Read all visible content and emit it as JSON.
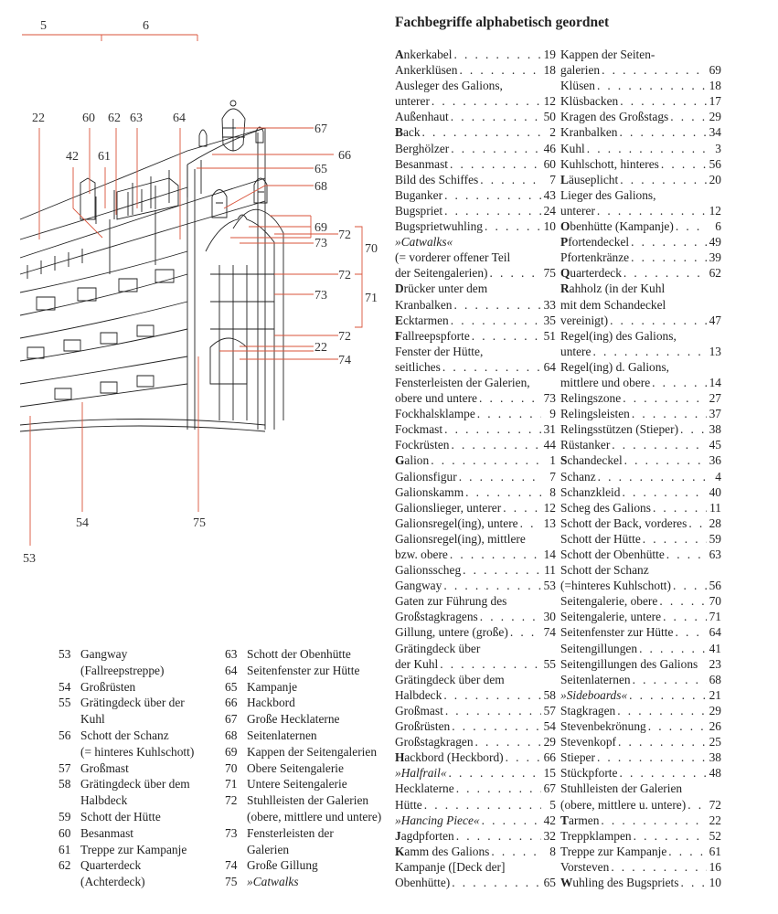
{
  "colors": {
    "leader_lines": "#d9533a",
    "drawing": "#222222",
    "text": "#222222"
  },
  "drawing": {
    "labels": {
      "top_5": "5",
      "top_6": "6",
      "l22a": "22",
      "l60": "60",
      "l62": "62",
      "l63": "63",
      "l64": "64",
      "l42": "42",
      "l61": "61",
      "l67": "67",
      "l66": "66",
      "l65": "65",
      "l68": "68",
      "l69": "69",
      "l72a": "72",
      "l73a": "73",
      "l70": "70",
      "l72b": "72",
      "l73b": "73",
      "l71": "71",
      "l72c": "72",
      "l22b": "22",
      "l74": "74",
      "l54": "54",
      "l75": "75",
      "l53": "53"
    }
  },
  "glossary": {
    "title": "Fachbegriffe alphabetisch geordnet",
    "col1": [
      {
        "t": "Ankerkabel",
        "n": "19",
        "b": 1
      },
      {
        "t": "Ankerklüsen",
        "n": "18"
      },
      {
        "t": "Ausleger des Galions,"
      },
      {
        "t": "unterer",
        "n": "12"
      },
      {
        "t": "Außenhaut",
        "n": "50"
      },
      {
        "t": "Back",
        "n": "2",
        "b": 1
      },
      {
        "t": "Berghölzer",
        "n": "46"
      },
      {
        "t": "Besanmast",
        "n": "60"
      },
      {
        "t": "Bild des Schiffes",
        "n": "7"
      },
      {
        "t": "Buganker",
        "n": "43"
      },
      {
        "t": "Bugspriet",
        "n": "24"
      },
      {
        "t": "Bugsprietwuhling",
        "n": "10"
      },
      {
        "t": "»Catwalks«",
        "i": 1
      },
      {
        "t": "(= vorderer offener Teil"
      },
      {
        "t": "der Seitengalerien)",
        "n": "75"
      },
      {
        "t": "Drücker unter dem",
        "b": 1
      },
      {
        "t": "Kranbalken",
        "n": "33"
      },
      {
        "t": "Ecktarmen",
        "n": "35",
        "b": 1
      },
      {
        "t": "Fallreepspforte",
        "n": "51",
        "b": 1
      },
      {
        "t": "Fenster der Hütte,"
      },
      {
        "t": "seitliches",
        "n": "64"
      },
      {
        "t": "Fensterleisten der Galerien,"
      },
      {
        "t": "obere und untere",
        "n": "73"
      },
      {
        "t": "Fockhalsklampe",
        "n": "9"
      },
      {
        "t": "Fockmast",
        "n": "31"
      },
      {
        "t": "Fockrüsten",
        "n": "44"
      },
      {
        "t": "Galion",
        "n": "1",
        "b": 1
      },
      {
        "t": "Galionsfigur",
        "n": "7"
      },
      {
        "t": "Galionskamm",
        "n": "8"
      },
      {
        "t": "Galionslieger, unterer",
        "n": "12"
      },
      {
        "t": "Galionsregel(ing), untere",
        "n": "13"
      },
      {
        "t": "Galionsregel(ing), mittlere"
      },
      {
        "t": "bzw. obere",
        "n": "14"
      },
      {
        "t": "Galionsscheg",
        "n": "11"
      },
      {
        "t": "Gangway",
        "n": "53"
      },
      {
        "t": "Gaten zur Führung des"
      },
      {
        "t": "Großstagkragens",
        "n": "30"
      },
      {
        "t": "Gillung, untere (große)",
        "n": "74"
      },
      {
        "t": "Grätingdeck über"
      },
      {
        "t": "der Kuhl",
        "n": "55"
      },
      {
        "t": "Grätingdeck über dem"
      },
      {
        "t": "Halbdeck",
        "n": "58"
      },
      {
        "t": "Großmast",
        "n": "57"
      },
      {
        "t": "Großrüsten",
        "n": "54"
      },
      {
        "t": "Großstagkragen",
        "n": "29"
      },
      {
        "t": "Hackbord (Heckbord)",
        "n": "66",
        "b": 1
      },
      {
        "t": "»Halfrail«",
        "n": "15",
        "i": 1
      },
      {
        "t": "Hecklaterne",
        "n": "67"
      },
      {
        "t": "Hütte",
        "n": "5"
      },
      {
        "t": "»Hancing Piece«",
        "n": "42",
        "i": 1
      },
      {
        "t": "Jagdpforten",
        "n": "32",
        "b": 1
      },
      {
        "t": "Kamm des Galions",
        "n": "8",
        "b": 1
      },
      {
        "t": "Kampanje ([Deck der]"
      },
      {
        "t": "Obenhütte)",
        "n": "65"
      }
    ],
    "col2": [
      {
        "t": "Kappen der Seiten-"
      },
      {
        "t": "galerien",
        "n": "69"
      },
      {
        "t": "Klüsen",
        "n": "18"
      },
      {
        "t": "Klüsbacken",
        "n": "17"
      },
      {
        "t": "Kragen des Großstags",
        "n": "29"
      },
      {
        "t": "Kranbalken",
        "n": "34"
      },
      {
        "t": "Kuhl",
        "n": "3"
      },
      {
        "t": "Kuhlschott, hinteres",
        "n": "56"
      },
      {
        "t": "Läuseplicht",
        "n": "20",
        "b": 1
      },
      {
        "t": "Lieger des Galions,"
      },
      {
        "t": "unterer",
        "n": "12"
      },
      {
        "t": "Obenhütte (Kampanje)",
        "n": "6",
        "b": 1
      },
      {
        "t": "Pfortendeckel",
        "n": "49",
        "b": 1
      },
      {
        "t": "Pfortenkränze",
        "n": "39"
      },
      {
        "t": "Quarterdeck",
        "n": "62",
        "b": 1
      },
      {
        "t": "Rahholz (in der Kuhl",
        "b": 1
      },
      {
        "t": "mit dem Schandeckel"
      },
      {
        "t": "vereinigt)",
        "n": "47"
      },
      {
        "t": "Regel(ing) des Galions,"
      },
      {
        "t": "untere",
        "n": "13"
      },
      {
        "t": "Regel(ing) d. Galions,"
      },
      {
        "t": "mittlere und obere",
        "n": "14"
      },
      {
        "t": "Relingszone",
        "n": "27"
      },
      {
        "t": "Relingsleisten",
        "n": "37"
      },
      {
        "t": "Relingsstützen (Stieper)",
        "n": "38"
      },
      {
        "t": "Rüstanker",
        "n": "45"
      },
      {
        "t": "Schandeckel",
        "n": "36",
        "b": 1
      },
      {
        "t": "Schanz",
        "n": "4"
      },
      {
        "t": "Schanzkleid",
        "n": "40"
      },
      {
        "t": "Scheg des Galions",
        "n": "11"
      },
      {
        "t": "Schott der Back, vorderes",
        "n": "28"
      },
      {
        "t": "Schott der Hütte",
        "n": "59"
      },
      {
        "t": "Schott der Obenhütte",
        "n": "63"
      },
      {
        "t": "Schott der Schanz"
      },
      {
        "t": "(=hinteres Kuhlschott)",
        "n": "56"
      },
      {
        "t": "Seitengalerie, obere",
        "n": "70"
      },
      {
        "t": "Seitengalerie, untere",
        "n": "71"
      },
      {
        "t": "Seitenfenster zur Hütte",
        "n": "64"
      },
      {
        "t": "Seitengillungen",
        "n": "41"
      },
      {
        "t": "Seitengillungen des Galions",
        "n": "23",
        "nodots": 1
      },
      {
        "t": "Seitenlaternen",
        "n": "68"
      },
      {
        "t": "»Sideboards«",
        "n": "21",
        "i": 1
      },
      {
        "t": "Stagkragen",
        "n": "29"
      },
      {
        "t": "Stevenbekrönung",
        "n": "26"
      },
      {
        "t": "Stevenkopf",
        "n": "25"
      },
      {
        "t": "Stieper",
        "n": "38"
      },
      {
        "t": "Stückpforte",
        "n": "48"
      },
      {
        "t": "Stuhlleisten der Galerien"
      },
      {
        "t": "(obere, mittlere u. untere)",
        "n": "72"
      },
      {
        "t": "Tarmen",
        "n": "22",
        "b": 1
      },
      {
        "t": "Treppklampen",
        "n": "52"
      },
      {
        "t": "Treppe zur Kampanje",
        "n": "61"
      },
      {
        "t": "Vorsteven",
        "n": "16"
      },
      {
        "t": "Wuhling des Bugspriets",
        "n": "10",
        "b": 1
      }
    ]
  },
  "legend": {
    "col1": [
      {
        "n": "53",
        "t": "Gangway"
      },
      {
        "n": "",
        "t": "(Fallreepstreppe)"
      },
      {
        "n": "54",
        "t": "Großrüsten"
      },
      {
        "n": "55",
        "t": "Grätingdeck über der"
      },
      {
        "n": "",
        "t": "Kuhl"
      },
      {
        "n": "56",
        "t": "Schott der Schanz"
      },
      {
        "n": "",
        "t": "(= hinteres Kuhlschott)"
      },
      {
        "n": "57",
        "t": "Großmast"
      },
      {
        "n": "58",
        "t": "Grätingdeck über dem"
      },
      {
        "n": "",
        "t": "Halbdeck"
      },
      {
        "n": "59",
        "t": "Schott der Hütte"
      },
      {
        "n": "60",
        "t": "Besanmast"
      },
      {
        "n": "61",
        "t": "Treppe zur Kampanje"
      },
      {
        "n": "62",
        "t": "Quarterdeck"
      },
      {
        "n": "",
        "t": "(Achterdeck)"
      }
    ],
    "col2": [
      {
        "n": "63",
        "t": "Schott der Obenhütte"
      },
      {
        "n": "64",
        "t": "Seitenfenster zur Hütte"
      },
      {
        "n": "65",
        "t": "Kampanje"
      },
      {
        "n": "66",
        "t": "Hackbord"
      },
      {
        "n": "67",
        "t": "Große Hecklaterne"
      },
      {
        "n": "68",
        "t": "Seitenlaternen"
      },
      {
        "n": "69",
        "t": "Kappen der Seitengalerien"
      },
      {
        "n": "70",
        "t": "Obere Seitengalerie"
      },
      {
        "n": "71",
        "t": "Untere Seitengalerie"
      },
      {
        "n": "72",
        "t": "Stuhlleisten der Galerien"
      },
      {
        "n": "",
        "t": "(obere, mittlere und untere)"
      },
      {
        "n": "73",
        "t": "Fensterleisten der"
      },
      {
        "n": "",
        "t": "Galerien"
      },
      {
        "n": "74",
        "t": "Große Gillung"
      },
      {
        "n": "75",
        "t": "»Catwalks",
        "i": 1
      }
    ]
  }
}
